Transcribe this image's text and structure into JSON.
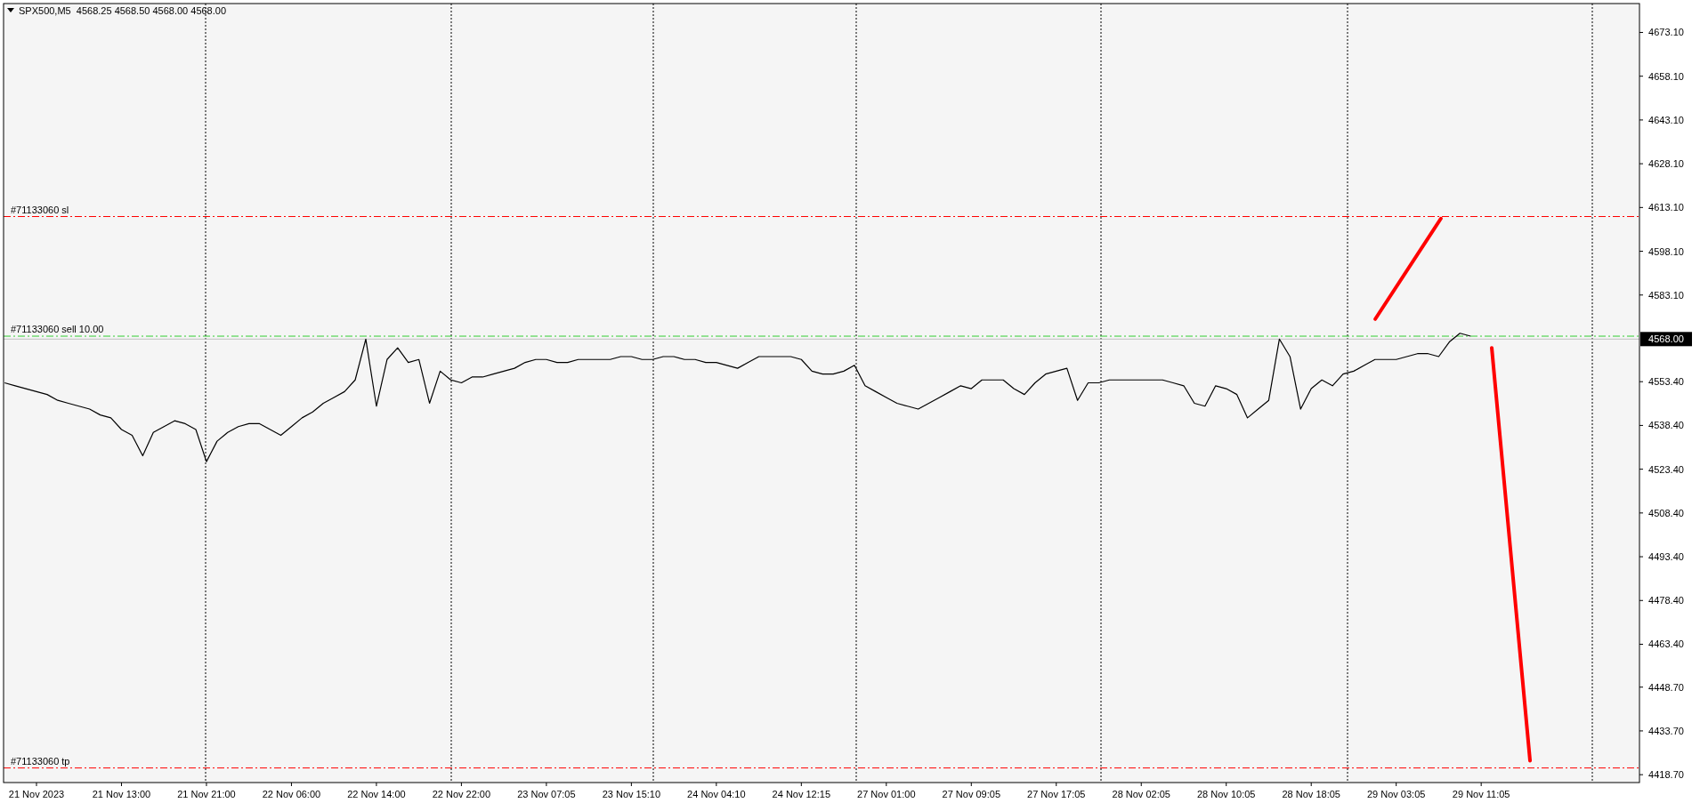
{
  "chart_data": {
    "type": "line",
    "title": "SPX500,M5  4568.25 4568.50 4568.00 4568.00",
    "categories": [
      null,
      null,
      null,
      "21 Nov 2023",
      null,
      null,
      null,
      null,
      null,
      null,
      null,
      "21 Nov 13:00",
      null,
      null,
      null,
      null,
      null,
      null,
      null,
      "21 Nov 21:00",
      null,
      null,
      null,
      null,
      null,
      null,
      null,
      "22 Nov 06:00",
      null,
      null,
      null,
      null,
      null,
      null,
      null,
      "22 Nov 14:00",
      null,
      null,
      null,
      null,
      null,
      null,
      null,
      "22 Nov 22:00",
      null,
      null,
      null,
      null,
      null,
      null,
      null,
      "23 Nov 07:05",
      null,
      null,
      null,
      null,
      null,
      null,
      null,
      "23 Nov 15:10",
      null,
      null,
      null,
      null,
      null,
      null,
      null,
      "24 Nov 04:10",
      null,
      null,
      null,
      null,
      null,
      null,
      null,
      "24 Nov 12:15",
      null,
      null,
      null,
      null,
      null,
      null,
      null,
      "27 Nov 01:00",
      null,
      null,
      null,
      null,
      null,
      null,
      null,
      "27 Nov 09:05",
      null,
      null,
      null,
      null,
      null,
      null,
      null,
      "27 Nov 17:05",
      null,
      null,
      null,
      null,
      null,
      null,
      null,
      "28 Nov 02:05",
      null,
      null,
      null,
      null,
      null,
      null,
      null,
      "28 Nov 10:05",
      null,
      null,
      null,
      null,
      null,
      null,
      null,
      "28 Nov 18:05",
      null,
      null,
      null,
      null,
      null,
      null,
      null,
      "29 Nov 03:05",
      null,
      null,
      null,
      null,
      null,
      null,
      null,
      "29 Nov 11:05",
      null,
      null,
      null,
      null,
      null,
      null,
      null,
      null,
      null,
      null,
      null,
      null,
      null,
      null
    ],
    "series": [
      {
        "color": "#000000",
        "values": [
          4553,
          4552,
          4551,
          4550,
          4549,
          4547,
          4546,
          4545,
          4544,
          4542,
          4541,
          4537,
          4535,
          4528,
          4536,
          4538,
          4540,
          4539,
          4537,
          4526,
          4533,
          4536,
          4538,
          4539,
          4539,
          4537,
          4535,
          4538,
          4541,
          4543,
          4546,
          4548,
          4550,
          4554,
          4568,
          4545,
          4561,
          4565,
          4560,
          4561,
          4546,
          4557,
          4554,
          4553,
          4555,
          4555,
          4556,
          4557,
          4558,
          4560,
          4561,
          4561,
          4560,
          4560,
          4561,
          4561,
          4561,
          4561,
          4562,
          4562,
          4561,
          4561,
          4562,
          4562,
          4561,
          4561,
          4560,
          4560,
          4559,
          4558,
          4560,
          4562,
          4562,
          4562,
          4562,
          4561,
          4557,
          4556,
          4556,
          4557,
          4559,
          4552,
          4550,
          4548,
          4546,
          4545,
          4544,
          4546,
          4548,
          4550,
          4552,
          4551,
          4554,
          4554,
          4554,
          4551,
          4549,
          4553,
          4556,
          4557,
          4558,
          4547,
          4553,
          4553,
          4554,
          4554,
          4554,
          4554,
          4554,
          4554,
          4553,
          4552,
          4546,
          4545,
          4552,
          4551,
          4549,
          4541,
          4544,
          4547,
          4568,
          4562,
          4544,
          4551,
          4554,
          4552,
          4556,
          4557,
          4559,
          4561,
          4561,
          4561,
          4562,
          4563,
          4563,
          4562,
          4567,
          4570,
          4569,
          null,
          null,
          null,
          null,
          null,
          null,
          null,
          null,
          null,
          null,
          null,
          null,
          null,
          null,
          null
        ]
      }
    ],
    "ylim": [
      4416,
      4683
    ],
    "yticks": [
      {
        "value": 4673.1,
        "label": "4673.10"
      },
      {
        "value": 4658.1,
        "label": "4658.10"
      },
      {
        "value": 4643.1,
        "label": "4643.10"
      },
      {
        "value": 4628.1,
        "label": "4628.10"
      },
      {
        "value": 4613.1,
        "label": "4613.10"
      },
      {
        "value": 4598.1,
        "label": "4598.10"
      },
      {
        "value": 4583.1,
        "label": "4583.10"
      },
      {
        "value": 4553.4,
        "label": "4553.40"
      },
      {
        "value": 4538.4,
        "label": "4538.40"
      },
      {
        "value": 4523.4,
        "label": "4523.40"
      },
      {
        "value": 4508.4,
        "label": "4508.40"
      },
      {
        "value": 4493.4,
        "label": "4493.40"
      },
      {
        "value": 4478.4,
        "label": "4478.40"
      },
      {
        "value": 4463.4,
        "label": "4463.40"
      },
      {
        "value": 4448.7,
        "label": "4448.70"
      },
      {
        "value": 4433.7,
        "label": "4433.70"
      },
      {
        "value": 4418.7,
        "label": "4418.70"
      }
    ],
    "ref_lines": [
      {
        "axis": "y",
        "value": 4610,
        "label": "#71133060 sl",
        "color": "#ff0000",
        "line_style": "dashed"
      },
      {
        "axis": "y",
        "value": 4569,
        "label": "#71133060 sell 10.00",
        "color": "#32cd32",
        "line_style": "dashed"
      },
      {
        "axis": "y",
        "value": 4421,
        "label": "#71133060 tp",
        "color": "#ff0000",
        "line_style": "dashed"
      },
      {
        "axis": "y",
        "value": 4568,
        "label": "4568.00",
        "color": "#c0c0c0",
        "line_style": "solid"
      }
    ]
  }
}
